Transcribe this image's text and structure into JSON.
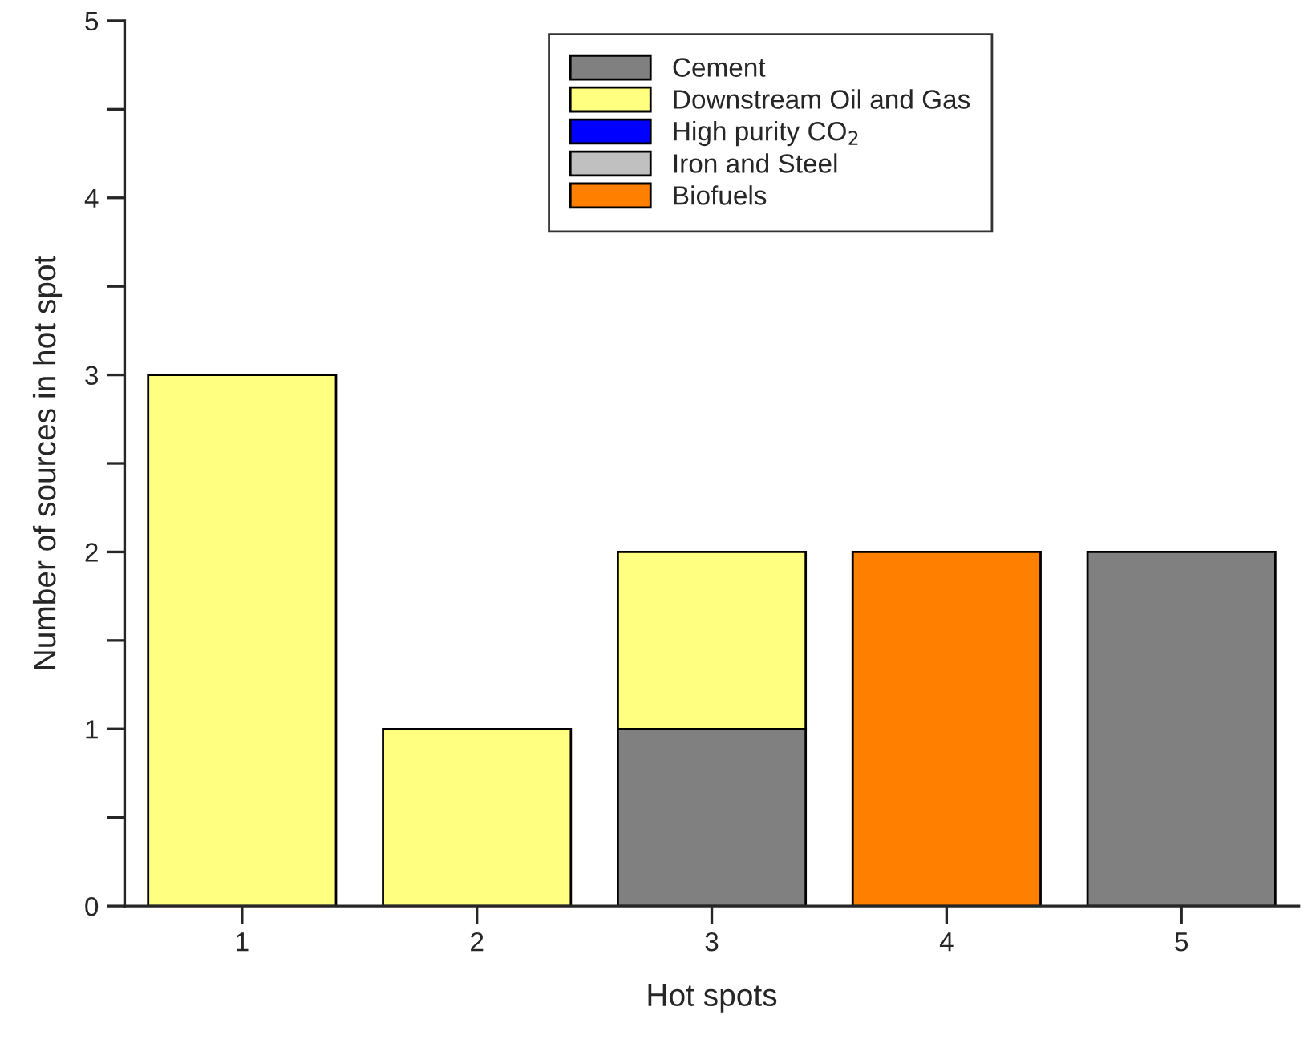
{
  "chart_data": {
    "type": "bar",
    "stacked": true,
    "xlabel": "Hot spots",
    "ylabel": "Number of sources in hot spot",
    "categories": [
      "1",
      "2",
      "3",
      "4",
      "5"
    ],
    "series": [
      {
        "name": "Cement",
        "color": "#808080",
        "values": [
          0,
          0,
          1,
          0,
          2
        ]
      },
      {
        "name": "Downstream Oil and Gas",
        "color": "#ffff80",
        "values": [
          3,
          1,
          1,
          0,
          0
        ]
      },
      {
        "name": "High purity CO$_{2}$",
        "color": "#0000ff",
        "values": [
          0,
          0,
          0,
          0,
          0
        ]
      },
      {
        "name": "Iron and Steel",
        "color": "#c0c0c0",
        "values": [
          0,
          0,
          0,
          0,
          0
        ]
      },
      {
        "name": "Biofuels",
        "color": "#ff8000",
        "values": [
          0,
          0,
          0,
          2,
          0
        ]
      }
    ],
    "ylim": [
      0,
      5
    ],
    "yticks": [
      0,
      {
        "value": 0.5,
        "label": null
      },
      1,
      {
        "value": 1.5,
        "label": null
      },
      2,
      {
        "value": 2.5,
        "label": null
      },
      3,
      {
        "value": 3.5,
        "label": null
      },
      4,
      {
        "value": 4.5,
        "label": null
      },
      5
    ],
    "grid": false,
    "legend": "top right"
  }
}
